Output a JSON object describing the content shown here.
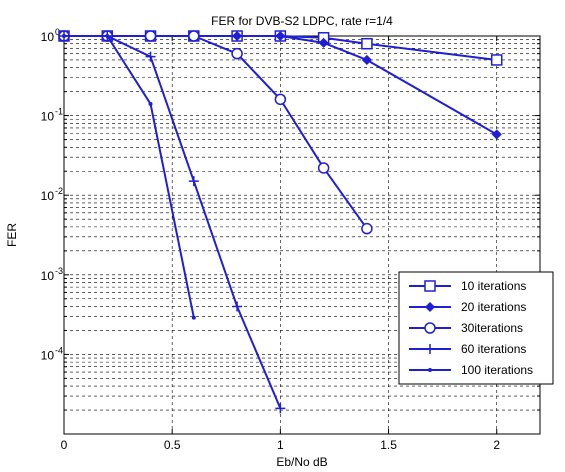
{
  "chart_data": {
    "type": "line",
    "title": "FER for DVB-S2 LDPC, rate r=1/4",
    "xlabel": "Eb/No dB",
    "ylabel": "FER",
    "xlim": [
      0,
      2.2
    ],
    "ylim": [
      1e-05,
      1
    ],
    "yscale": "log",
    "grid": true,
    "legend_position": "bottom-right",
    "x_ticks": [
      {
        "value": 0,
        "label": "0"
      },
      {
        "value": 0.5,
        "label": "0.5"
      },
      {
        "value": 1,
        "label": "1"
      },
      {
        "value": 1.5,
        "label": "1.5"
      },
      {
        "value": 2,
        "label": "2"
      }
    ],
    "y_ticks": [
      {
        "value": 1,
        "base": "10",
        "exp": "0"
      },
      {
        "value": 0.1,
        "base": "10",
        "exp": "-1"
      },
      {
        "value": 0.01,
        "base": "10",
        "exp": "-2"
      },
      {
        "value": 0.001,
        "base": "10",
        "exp": "-3"
      },
      {
        "value": 0.0001,
        "base": "10",
        "exp": "-4"
      }
    ],
    "series": [
      {
        "name": "10 iterations",
        "marker": "square",
        "x": [
          0,
          0.2,
          0.4,
          0.6,
          0.8,
          1.0,
          1.2,
          1.4,
          2.0
        ],
        "y": [
          1,
          1,
          1,
          1,
          1,
          1,
          0.95,
          0.8,
          0.5
        ]
      },
      {
        "name": "20 iterations",
        "marker": "diamond",
        "x": [
          0,
          0.2,
          0.4,
          0.6,
          0.8,
          1.0,
          1.2,
          1.4,
          2.0
        ],
        "y": [
          1,
          1,
          1,
          1,
          1,
          1,
          0.82,
          0.5,
          0.058
        ]
      },
      {
        "name": "30iterations",
        "marker": "circle",
        "x": [
          0,
          0.2,
          0.4,
          0.6,
          0.8,
          1.0,
          1.2,
          1.4
        ],
        "y": [
          1,
          1,
          1,
          1,
          0.6,
          0.16,
          0.022,
          0.0038
        ]
      },
      {
        "name": "60 iterations",
        "marker": "plus",
        "x": [
          0,
          0.2,
          0.4,
          0.6,
          0.8,
          1.0
        ],
        "y": [
          1,
          1,
          0.55,
          0.015,
          0.0004,
          2.1e-05
        ]
      },
      {
        "name": "100 iterations",
        "marker": "dot",
        "x": [
          0,
          0.2,
          0.4,
          0.6
        ],
        "y": [
          1,
          1,
          0.14,
          0.00029
        ]
      }
    ]
  },
  "colors": {
    "line": "#1f1fd6",
    "grid": "#000000",
    "axis": "#000000",
    "background": "#ffffff"
  }
}
